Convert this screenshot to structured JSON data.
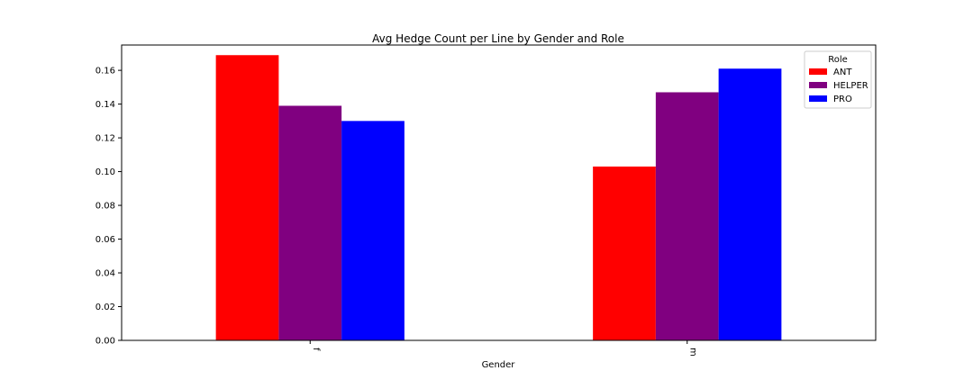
{
  "chart_data": {
    "type": "bar",
    "title": "Avg Hedge Count per Line by Gender and Role",
    "xlabel": "Gender",
    "ylabel": "",
    "categories": [
      "f",
      "m"
    ],
    "ylim": [
      0,
      0.175
    ],
    "yticks": [
      0.0,
      0.02,
      0.04,
      0.06,
      0.08,
      0.1,
      0.12,
      0.14,
      0.16
    ],
    "ytick_labels": [
      "0.00",
      "0.02",
      "0.04",
      "0.06",
      "0.08",
      "0.10",
      "0.12",
      "0.14",
      "0.16"
    ],
    "grid": false,
    "legend": {
      "title": "Role",
      "placement": "top-right"
    },
    "series": [
      {
        "name": "ANT",
        "color": "#ff0000",
        "values": [
          0.169,
          0.103
        ]
      },
      {
        "name": "HELPER",
        "color": "#800080",
        "values": [
          0.139,
          0.147
        ]
      },
      {
        "name": "PRO",
        "color": "#0000ff",
        "values": [
          0.13,
          0.161
        ]
      }
    ]
  }
}
